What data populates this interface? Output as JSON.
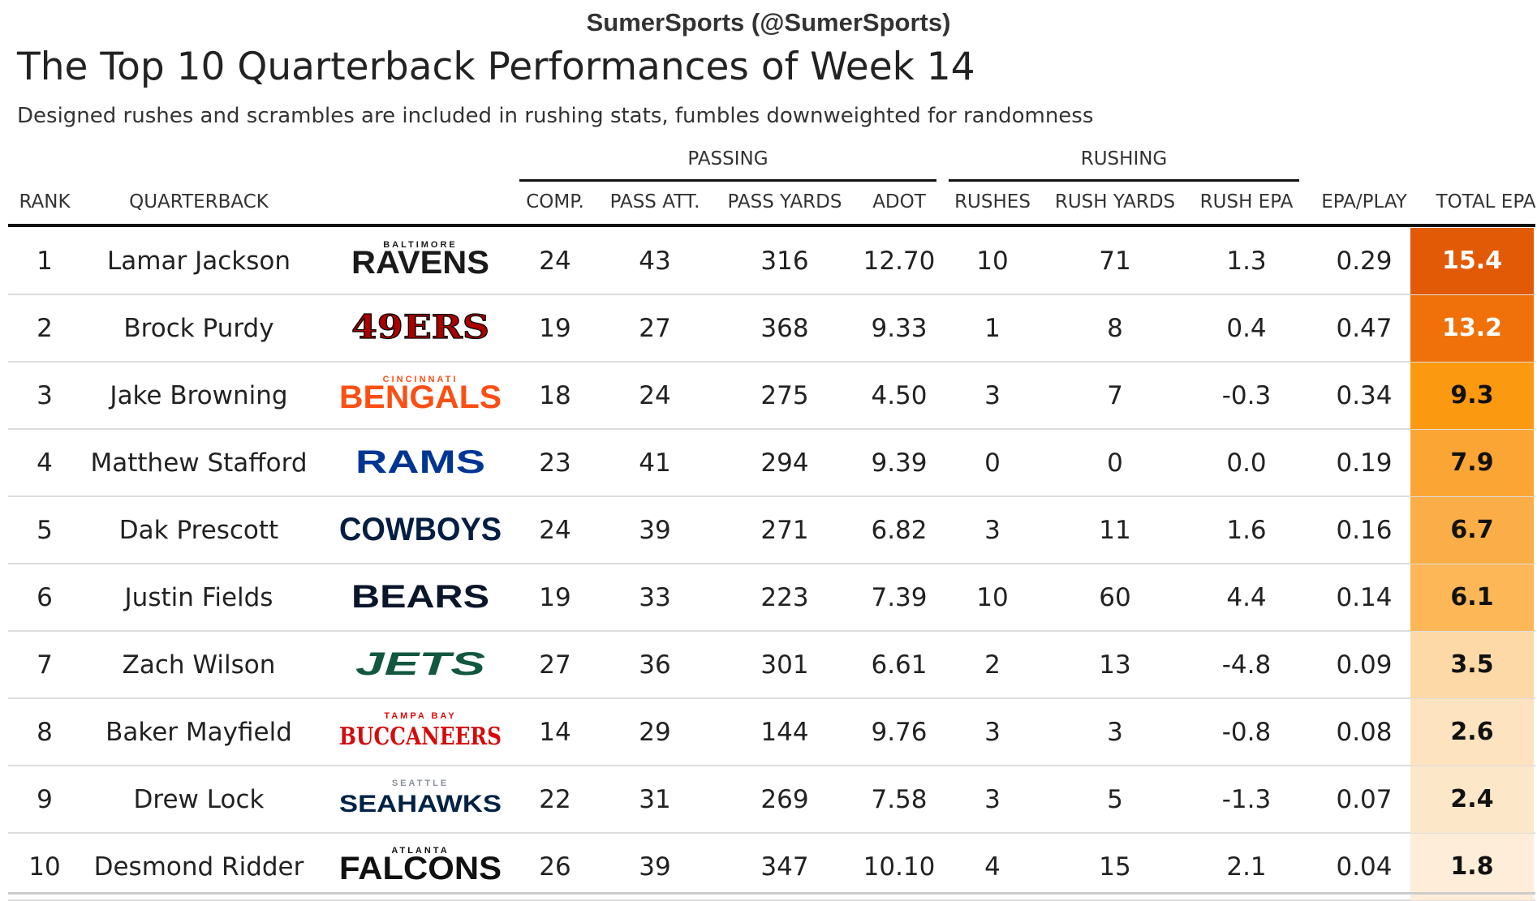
{
  "attribution": "SumerSports (@SumerSports)",
  "title": "The Top 10 Quarterback Performances of Week 14",
  "subtitle": "Designed rushes and scrambles are included in rushing stats, fumbles downweighted for randomness",
  "column_groups": {
    "passing": "PASSING",
    "rushing": "RUSHING"
  },
  "columns": {
    "rank": "RANK",
    "quarterback": "QUARTERBACK",
    "comp": "COMP.",
    "pass_att": "PASS ATT.",
    "pass_yards": "PASS YARDS",
    "adot": "ADOT",
    "rushes": "RUSHES",
    "rush_yards": "RUSH YARDS",
    "rush_epa": "RUSH EPA",
    "epa_play": "EPA/PLAY",
    "total_epa": "TOTAL EPA"
  },
  "chart_data": {
    "type": "table",
    "title": "The Top 10 Quarterback Performances of Week 14",
    "rows": [
      {
        "rank": "1",
        "quarterback": "Lamar Jackson",
        "team_logo": "ravens-logo",
        "team_text": "RAVENS",
        "team_small": "BALTIMORE",
        "comp": "24",
        "pass_att": "43",
        "pass_yards": "316",
        "adot": "12.70",
        "rushes": "10",
        "rush_yards": "71",
        "rush_epa": "1.3",
        "epa_play": "0.29",
        "total_epa": "15.4",
        "epa_color": "#e35a06"
      },
      {
        "rank": "2",
        "quarterback": "Brock Purdy",
        "team_logo": "49ers-logo",
        "team_text": "49ERS",
        "team_small": "",
        "comp": "19",
        "pass_att": "27",
        "pass_yards": "368",
        "adot": "9.33",
        "rushes": "1",
        "rush_yards": "8",
        "rush_epa": "0.4",
        "epa_play": "0.47",
        "total_epa": "13.2",
        "epa_color": "#f07109"
      },
      {
        "rank": "3",
        "quarterback": "Jake Browning",
        "team_logo": "bengals-logo",
        "team_text": "BENGALS",
        "team_small": "CINCINNATI",
        "comp": "18",
        "pass_att": "24",
        "pass_yards": "275",
        "adot": "4.50",
        "rushes": "3",
        "rush_yards": "7",
        "rush_epa": "-0.3",
        "epa_play": "0.34",
        "total_epa": "9.3",
        "epa_color": "#fb9a11"
      },
      {
        "rank": "4",
        "quarterback": "Matthew Stafford",
        "team_logo": "rams-logo",
        "team_text": "RAMS",
        "team_small": "",
        "comp": "23",
        "pass_att": "41",
        "pass_yards": "294",
        "adot": "9.39",
        "rushes": "0",
        "rush_yards": "0",
        "rush_epa": "0.0",
        "epa_play": "0.19",
        "total_epa": "7.9",
        "epa_color": "#fba535"
      },
      {
        "rank": "5",
        "quarterback": "Dak Prescott",
        "team_logo": "cowboys-logo",
        "team_text": "COWBOYS",
        "team_small": "",
        "comp": "24",
        "pass_att": "39",
        "pass_yards": "271",
        "adot": "6.82",
        "rushes": "3",
        "rush_yards": "11",
        "rush_epa": "1.6",
        "epa_play": "0.16",
        "total_epa": "6.7",
        "epa_color": "#fbae47"
      },
      {
        "rank": "6",
        "quarterback": "Justin Fields",
        "team_logo": "bears-logo",
        "team_text": "BEARS",
        "team_small": "",
        "comp": "19",
        "pass_att": "33",
        "pass_yards": "223",
        "adot": "7.39",
        "rushes": "10",
        "rush_yards": "60",
        "rush_epa": "4.4",
        "epa_play": "0.14",
        "total_epa": "6.1",
        "epa_color": "#fdb757"
      },
      {
        "rank": "7",
        "quarterback": "Zach Wilson",
        "team_logo": "jets-logo",
        "team_text": "JETS",
        "team_small": "",
        "comp": "27",
        "pass_att": "36",
        "pass_yards": "301",
        "adot": "6.61",
        "rushes": "2",
        "rush_yards": "13",
        "rush_epa": "-4.8",
        "epa_play": "0.09",
        "total_epa": "3.5",
        "epa_color": "#fdd9a8"
      },
      {
        "rank": "8",
        "quarterback": "Baker Mayfield",
        "team_logo": "buccaneers-logo",
        "team_text": "BUCCANEERS",
        "team_small": "TAMPA BAY",
        "comp": "14",
        "pass_att": "29",
        "pass_yards": "144",
        "adot": "9.76",
        "rushes": "3",
        "rush_yards": "3",
        "rush_epa": "-0.8",
        "epa_play": "0.08",
        "total_epa": "2.6",
        "epa_color": "#fde3c0"
      },
      {
        "rank": "9",
        "quarterback": "Drew Lock",
        "team_logo": "seahawks-logo",
        "team_text": "SEAHAWKS",
        "team_small": "SEATTLE",
        "comp": "22",
        "pass_att": "31",
        "pass_yards": "269",
        "adot": "7.58",
        "rushes": "3",
        "rush_yards": "5",
        "rush_epa": "-1.3",
        "epa_play": "0.07",
        "total_epa": "2.4",
        "epa_color": "#fde7c9"
      },
      {
        "rank": "10",
        "quarterback": "Desmond Ridder",
        "team_logo": "falcons-logo",
        "team_text": "FALCONS",
        "team_small": "ATLANTA",
        "comp": "26",
        "pass_att": "39",
        "pass_yards": "347",
        "adot": "10.10",
        "rushes": "4",
        "rush_yards": "15",
        "rush_epa": "2.1",
        "epa_play": "0.04",
        "total_epa": "1.8",
        "epa_color": "#feeed9"
      }
    ],
    "logo_colors": {
      "RAVENS": "#1a1a1a",
      "49ERS": "#aa0000",
      "BENGALS": "#fb4f14",
      "RAMS": "#003594",
      "COWBOYS": "#041e42",
      "BEARS": "#0b162a",
      "JETS": "#125740",
      "BUCCANEERS": "#d50a0a",
      "SEAHAWKS": "#002244",
      "FALCONS": "#111111"
    }
  }
}
